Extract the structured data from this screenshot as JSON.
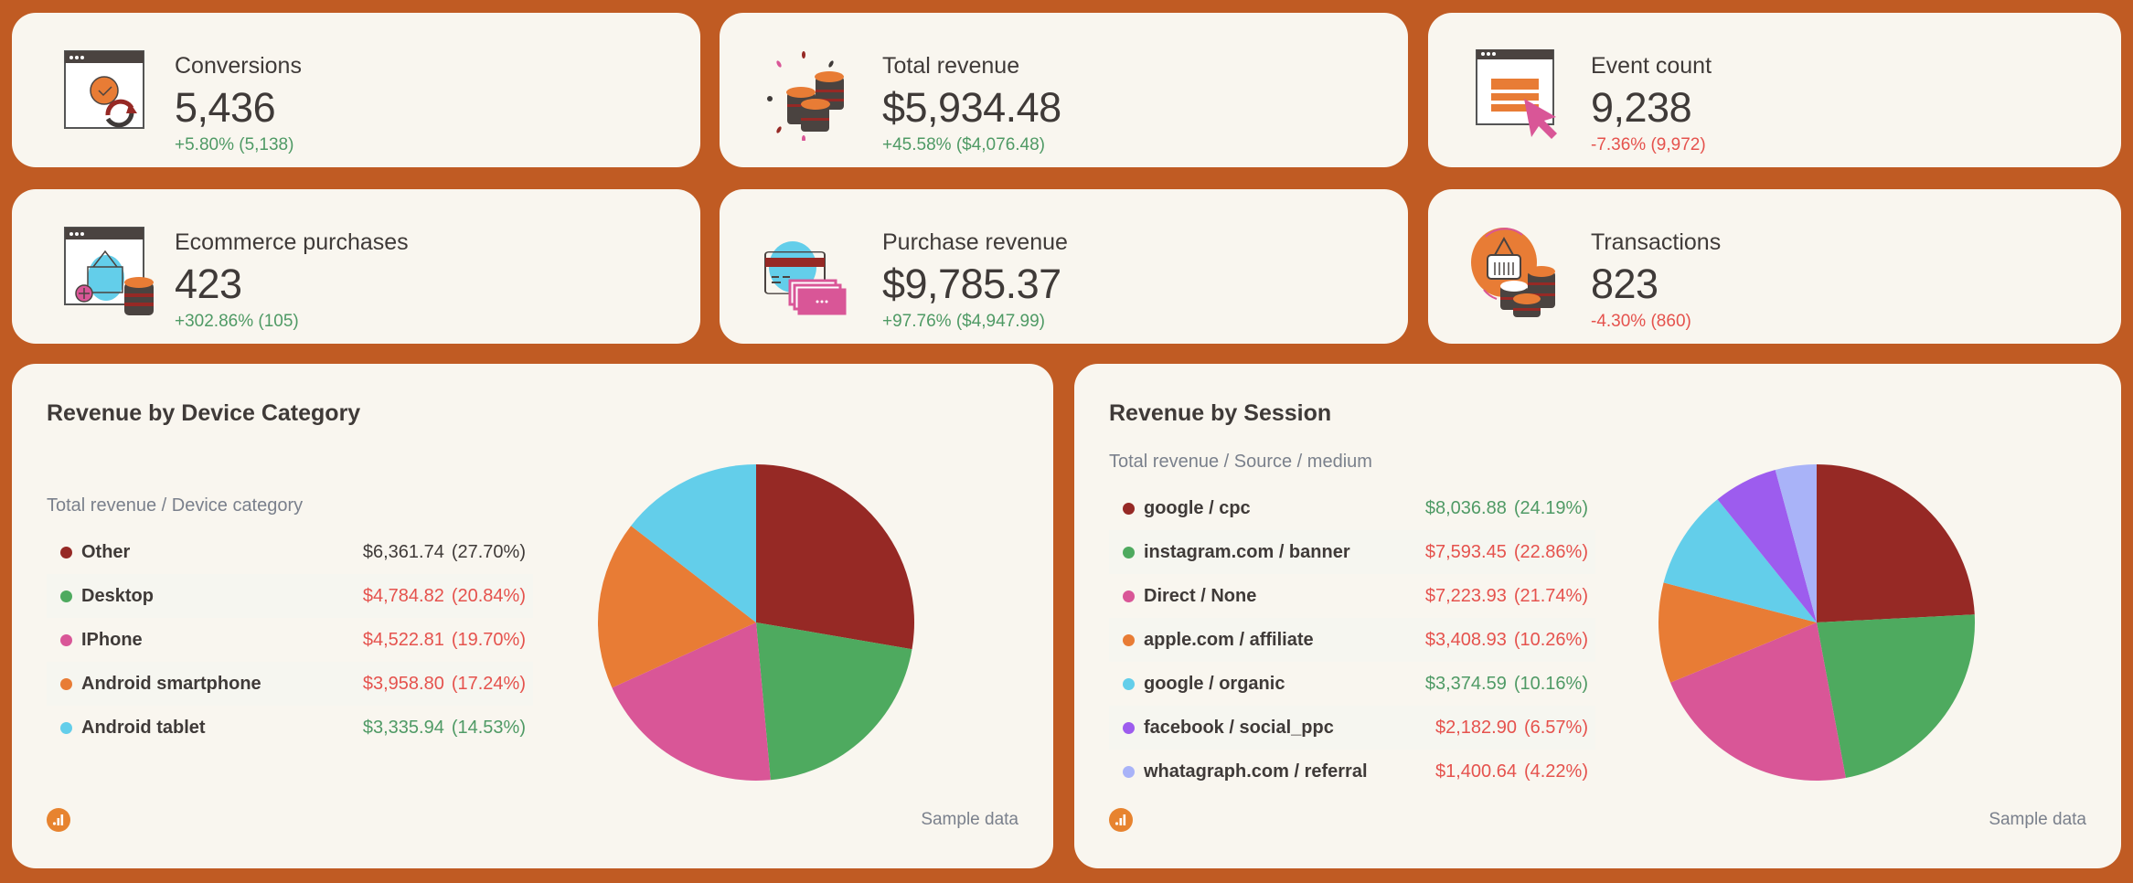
{
  "colors": {
    "background": "#C05B23",
    "card": "#F9F6EF",
    "positive": "#4f9a65",
    "negative": "#e5524d",
    "text": "#3f3a38",
    "muted": "#7a808c"
  },
  "kpis": [
    {
      "label": "Conversions",
      "value": "5,436",
      "delta": "+5.80% (5,138)",
      "trend": "pos",
      "icon": "conversion-window-icon"
    },
    {
      "label": "Total revenue",
      "value": "$5,934.48",
      "delta": "+45.58% ($4,076.48)",
      "trend": "pos",
      "icon": "coin-stacks-icon"
    },
    {
      "label": "Event count",
      "value": "9,238",
      "delta": "-7.36% (9,972)",
      "trend": "neg",
      "icon": "window-cursor-icon"
    },
    {
      "label": "Ecommerce purchases",
      "value": "423",
      "delta": "+302.86% (105)",
      "trend": "pos",
      "icon": "basket-window-icon"
    },
    {
      "label": "Purchase revenue",
      "value": "$9,785.37",
      "delta": "+97.76% ($4,947.99)",
      "trend": "pos",
      "icon": "credit-card-cash-icon"
    },
    {
      "label": "Transactions",
      "value": "823",
      "delta": "-4.30% (860)",
      "trend": "neg",
      "icon": "basket-coins-icon"
    }
  ],
  "panels": [
    {
      "title": "Revenue by Device Category",
      "subtitle": "Total revenue / Device category",
      "footer": "Sample data",
      "rows": [
        {
          "name": "Other",
          "value": "$6,361.74",
          "pct": "(27.70%)",
          "trend": "neutral",
          "color": "#962925"
        },
        {
          "name": "Desktop",
          "value": "$4,784.82",
          "pct": "(20.84%)",
          "trend": "neg",
          "color": "#4EAA5F"
        },
        {
          "name": "IPhone",
          "value": "$4,522.81",
          "pct": "(19.70%)",
          "trend": "neg",
          "color": "#D95697"
        },
        {
          "name": "Android smartphone",
          "value": "$3,958.80",
          "pct": "(17.24%)",
          "trend": "neg",
          "color": "#E87C35"
        },
        {
          "name": "Android tablet",
          "value": "$3,335.94",
          "pct": "(14.53%)",
          "trend": "pos",
          "color": "#63CEEA"
        }
      ]
    },
    {
      "title": "Revenue by Session",
      "subtitle": "Total revenue / Source / medium",
      "footer": "Sample data",
      "rows": [
        {
          "name": "google / cpc",
          "value": "$8,036.88",
          "pct": "(24.19%)",
          "trend": "pos",
          "color": "#962925"
        },
        {
          "name": "instagram.com / banner",
          "value": "$7,593.45",
          "pct": "(22.86%)",
          "trend": "neg",
          "color": "#4EAA5F"
        },
        {
          "name": "Direct / None",
          "value": "$7,223.93",
          "pct": "(21.74%)",
          "trend": "neg",
          "color": "#D95697"
        },
        {
          "name": "apple.com / affiliate",
          "value": "$3,408.93",
          "pct": "(10.26%)",
          "trend": "neg",
          "color": "#E87C35"
        },
        {
          "name": "google / organic",
          "value": "$3,374.59",
          "pct": "(10.16%)",
          "trend": "pos",
          "color": "#63CEEA"
        },
        {
          "name": "facebook / social_ppc",
          "value": "$2,182.90",
          "pct": "(6.57%)",
          "trend": "neg",
          "color": "#9D5CEE"
        },
        {
          "name": "whatagraph.com / referral",
          "value": "$1,400.64",
          "pct": "(4.22%)",
          "trend": "neg",
          "color": "#A9B3F8"
        }
      ]
    }
  ],
  "chart_data": [
    {
      "type": "pie",
      "title": "Revenue by Device Category",
      "subtitle": "Total revenue / Device category",
      "categories": [
        "Other",
        "Desktop",
        "IPhone",
        "Android smartphone",
        "Android tablet"
      ],
      "values": [
        6361.74,
        4784.82,
        4522.81,
        3958.8,
        3335.94
      ],
      "percentages": [
        27.7,
        20.84,
        19.7,
        17.24,
        14.53
      ],
      "colors": [
        "#962925",
        "#4EAA5F",
        "#D95697",
        "#E87C35",
        "#63CEEA"
      ],
      "legend_position": "left"
    },
    {
      "type": "pie",
      "title": "Revenue by Session",
      "subtitle": "Total revenue / Source / medium",
      "categories": [
        "google / cpc",
        "instagram.com / banner",
        "Direct / None",
        "apple.com / affiliate",
        "google / organic",
        "facebook / social_ppc",
        "whatagraph.com / referral"
      ],
      "values": [
        8036.88,
        7593.45,
        7223.93,
        3408.93,
        3374.59,
        2182.9,
        1400.64
      ],
      "percentages": [
        24.19,
        22.86,
        21.74,
        10.26,
        10.16,
        6.57,
        4.22
      ],
      "colors": [
        "#962925",
        "#4EAA5F",
        "#D95697",
        "#E87C35",
        "#63CEEA",
        "#9D5CEE",
        "#A9B3F8"
      ],
      "legend_position": "left"
    }
  ]
}
